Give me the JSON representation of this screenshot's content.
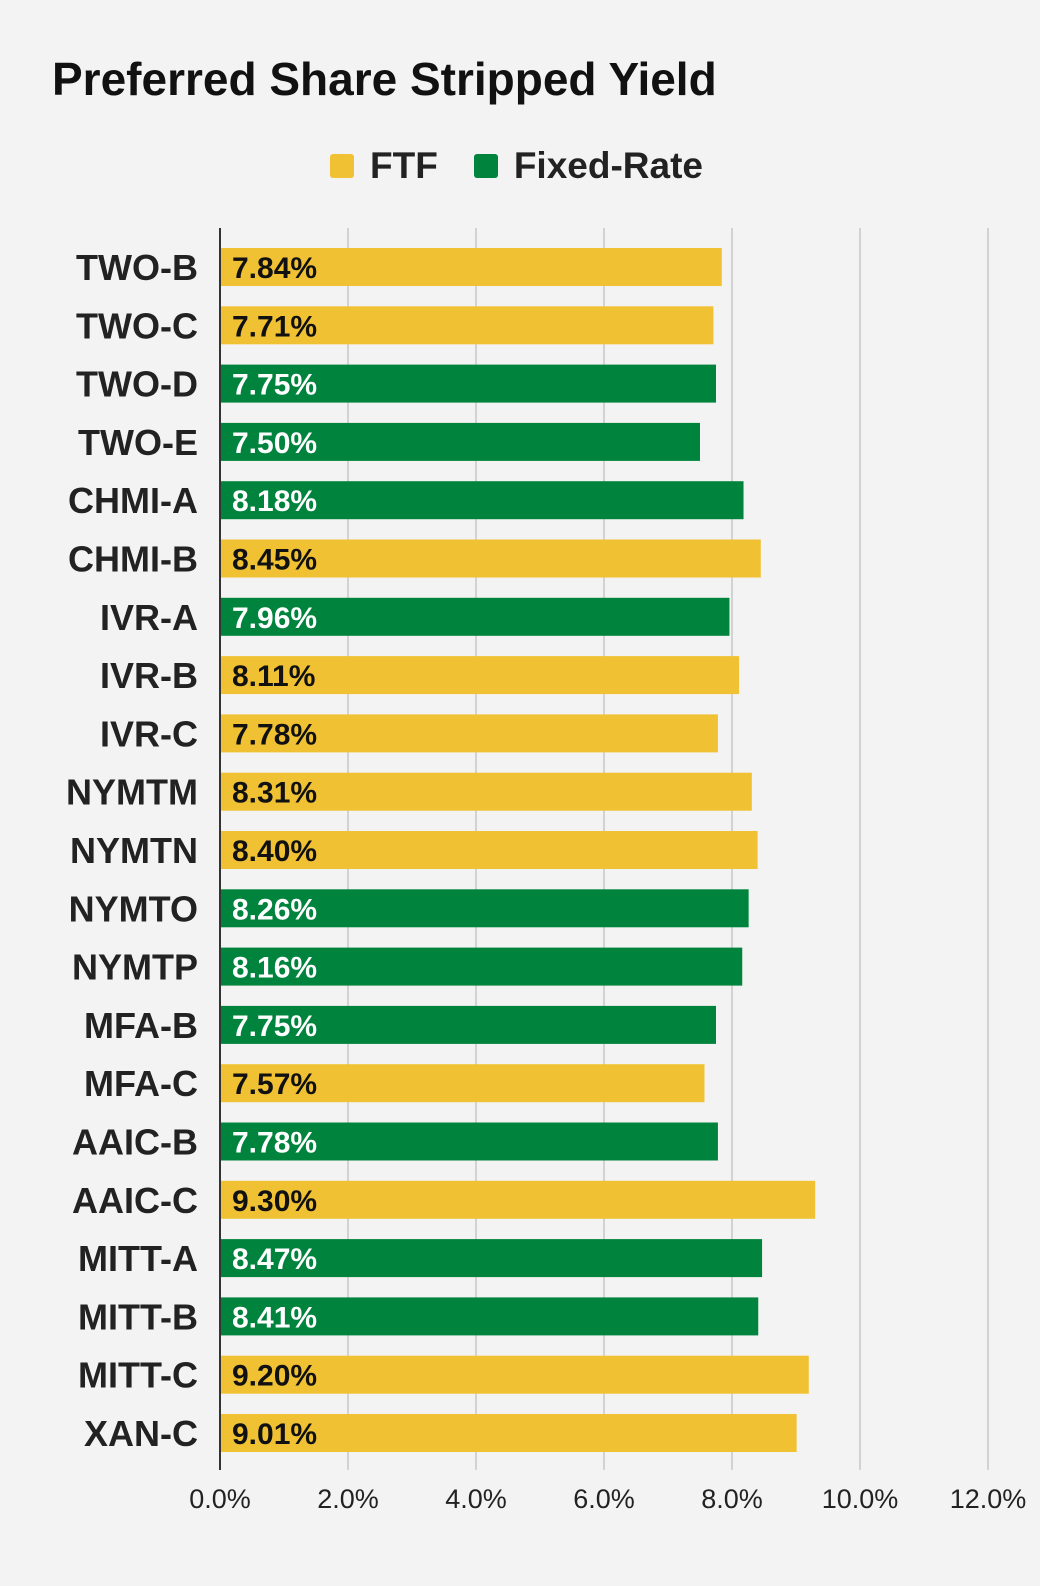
{
  "chart_data": {
    "type": "bar",
    "orientation": "horizontal",
    "title": "Preferred Share Stripped Yield",
    "legend": [
      {
        "name": "FTF",
        "color": "#f0c233"
      },
      {
        "name": "Fixed-Rate",
        "color": "#00843d"
      }
    ],
    "legend_position": "top",
    "categories": [
      "TWO-B",
      "TWO-C",
      "TWO-D",
      "TWO-E",
      "CHMI-A",
      "CHMI-B",
      "IVR-A",
      "IVR-B",
      "IVR-C",
      "NYMTM",
      "NYMTN",
      "NYMTO",
      "NYMTP",
      "MFA-B",
      "MFA-C",
      "AAIC-B",
      "AAIC-C",
      "MITT-A",
      "MITT-B",
      "MITT-C",
      "XAN-C"
    ],
    "values": [
      7.84,
      7.71,
      7.75,
      7.5,
      8.18,
      8.45,
      7.96,
      8.11,
      7.78,
      8.31,
      8.4,
      8.26,
      8.16,
      7.75,
      7.57,
      7.78,
      9.3,
      8.47,
      8.41,
      9.2,
      9.01
    ],
    "value_labels": [
      "7.84%",
      "7.71%",
      "7.75%",
      "7.50%",
      "8.18%",
      "8.45%",
      "7.96%",
      "8.11%",
      "7.78%",
      "8.31%",
      "8.40%",
      "8.26%",
      "8.16%",
      "7.75%",
      "7.57%",
      "7.78%",
      "9.30%",
      "8.47%",
      "8.41%",
      "9.20%",
      "9.01%"
    ],
    "series_of_category": [
      "FTF",
      "FTF",
      "Fixed-Rate",
      "Fixed-Rate",
      "Fixed-Rate",
      "FTF",
      "Fixed-Rate",
      "FTF",
      "FTF",
      "FTF",
      "FTF",
      "Fixed-Rate",
      "Fixed-Rate",
      "Fixed-Rate",
      "FTF",
      "Fixed-Rate",
      "FTF",
      "Fixed-Rate",
      "Fixed-Rate",
      "FTF",
      "FTF"
    ],
    "x_ticks": [
      "0.0%",
      "2.0%",
      "4.0%",
      "6.0%",
      "8.0%",
      "10.0%",
      "12.0%"
    ],
    "xlim": [
      0,
      12
    ],
    "grid": true,
    "colors": {
      "FTF": "#f0c233",
      "Fixed-Rate": "#00843d",
      "FTF_text": "#111111",
      "Fixed-Rate_text": "#ffffff",
      "grid": "#c8c8c8",
      "axis": "#333333"
    }
  }
}
